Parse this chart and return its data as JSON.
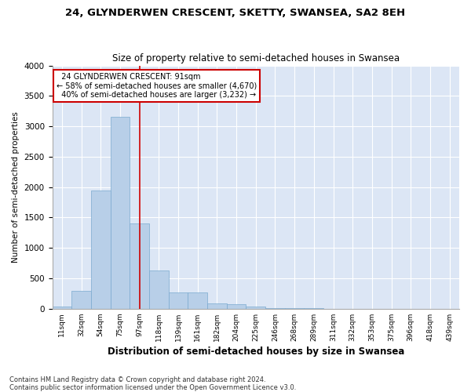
{
  "title": "24, GLYNDERWEN CRESCENT, SKETTY, SWANSEA, SA2 8EH",
  "subtitle": "Size of property relative to semi-detached houses in Swansea",
  "xlabel": "Distribution of semi-detached houses by size in Swansea",
  "ylabel": "Number of semi-detached properties",
  "footnote": "Contains HM Land Registry data © Crown copyright and database right 2024.\nContains public sector information licensed under the Open Government Licence v3.0.",
  "bar_color": "#b8cfe8",
  "bar_edge_color": "#7aaacf",
  "background_color": "#dce6f5",
  "grid_color": "#ffffff",
  "fig_background": "#ffffff",
  "annotation_text": "  24 GLYNDERWEN CRESCENT: 91sqm\n← 58% of semi-detached houses are smaller (4,670)\n  40% of semi-detached houses are larger (3,232) →",
  "property_size": 91,
  "red_line_color": "#cc0000",
  "annotation_box_color": "#ffffff",
  "annotation_box_edge_color": "#cc0000",
  "categories": [
    "11sqm",
    "32sqm",
    "54sqm",
    "75sqm",
    "97sqm",
    "118sqm",
    "139sqm",
    "161sqm",
    "182sqm",
    "204sqm",
    "225sqm",
    "246sqm",
    "268sqm",
    "289sqm",
    "311sqm",
    "332sqm",
    "353sqm",
    "375sqm",
    "396sqm",
    "418sqm",
    "439sqm"
  ],
  "values": [
    30,
    300,
    1950,
    3150,
    1400,
    630,
    270,
    270,
    90,
    70,
    40,
    15,
    5,
    5,
    3,
    2,
    2,
    1,
    1,
    1,
    1
  ],
  "ylim": [
    0,
    4000
  ],
  "yticks": [
    0,
    500,
    1000,
    1500,
    2000,
    2500,
    3000,
    3500,
    4000
  ],
  "red_line_x": 4.0,
  "figsize": [
    6.0,
    5.0
  ],
  "dpi": 100
}
